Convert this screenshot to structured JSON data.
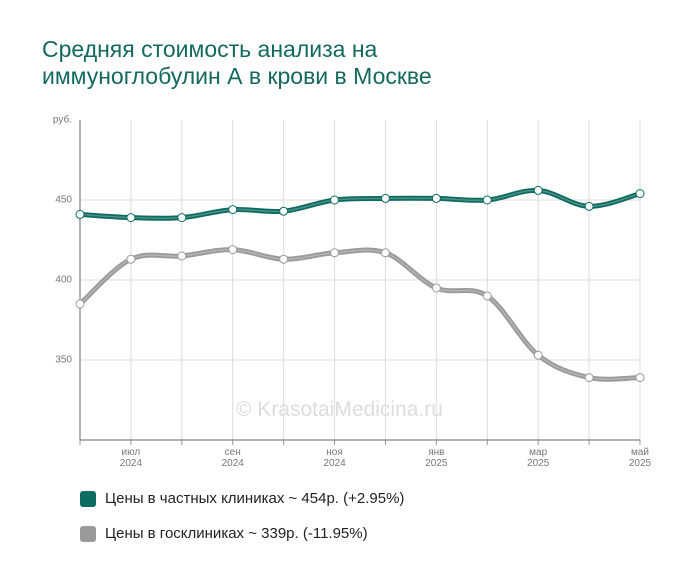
{
  "chart_data": {
    "type": "line",
    "title": "Средняя стоимость анализа на\nиммуноглобулин А в крови в Москве",
    "y_label": "руб.",
    "watermark": "© KrasotaiMedicina.ru",
    "categories": [
      null,
      "июл\n2024",
      null,
      "сен\n2024",
      null,
      "ноя\n2024",
      null,
      "янв\n2025",
      null,
      "мар\n2025",
      null,
      "май\n2025"
    ],
    "ylim": [
      300,
      500
    ],
    "yticks": [
      350,
      400,
      450
    ],
    "grid": true,
    "series": [
      {
        "name": "Цены в частных клиниках ~ 454р. (+2.95%)",
        "color": "#0e6b60",
        "values": [
          441,
          439,
          439,
          444,
          443,
          450,
          451,
          451,
          450,
          456,
          446,
          454
        ]
      },
      {
        "name": "Цены в госклиниках ~ 339р. (-11.95%)",
        "color": "#9a9a9a",
        "values": [
          385,
          413,
          415,
          419,
          413,
          417,
          417,
          395,
          390,
          353,
          339,
          339
        ]
      }
    ]
  }
}
